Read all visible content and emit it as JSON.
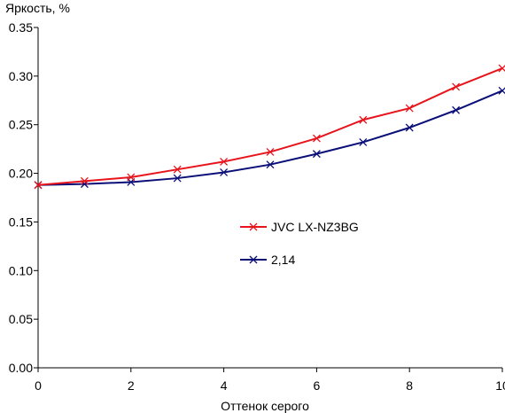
{
  "chart_data": {
    "type": "line",
    "title": "",
    "xlabel": "Оттенок серого",
    "ylabel": "Яркость, %",
    "xlim": [
      0,
      10
    ],
    "ylim": [
      0,
      0.35
    ],
    "x_ticks": [
      0,
      2,
      4,
      6,
      8,
      10
    ],
    "x_tick_labels": [
      "0",
      "2",
      "4",
      "6",
      "8",
      "10"
    ],
    "y_ticks": [
      0,
      0.05,
      0.1,
      0.15,
      0.2,
      0.25,
      0.3,
      0.35
    ],
    "y_tick_labels": [
      "0.00",
      "0.05",
      "0.10",
      "0.15",
      "0.20",
      "0.25",
      "0.30",
      "0.35"
    ],
    "grid": false,
    "legend_position": "center",
    "x": [
      0,
      1,
      2,
      3,
      4,
      5,
      6,
      7,
      8,
      9,
      10
    ],
    "series": [
      {
        "name": "JVC LX-NZ3BG",
        "color": "#e8141c",
        "marker": "x",
        "values": [
          0.188,
          0.192,
          0.196,
          0.204,
          0.212,
          0.222,
          0.236,
          0.255,
          0.267,
          0.289,
          0.308
        ]
      },
      {
        "name": "2,14",
        "color": "#0a0f78",
        "marker": "x",
        "values": [
          0.188,
          0.189,
          0.191,
          0.195,
          0.201,
          0.209,
          0.22,
          0.232,
          0.247,
          0.265,
          0.285
        ]
      }
    ]
  }
}
